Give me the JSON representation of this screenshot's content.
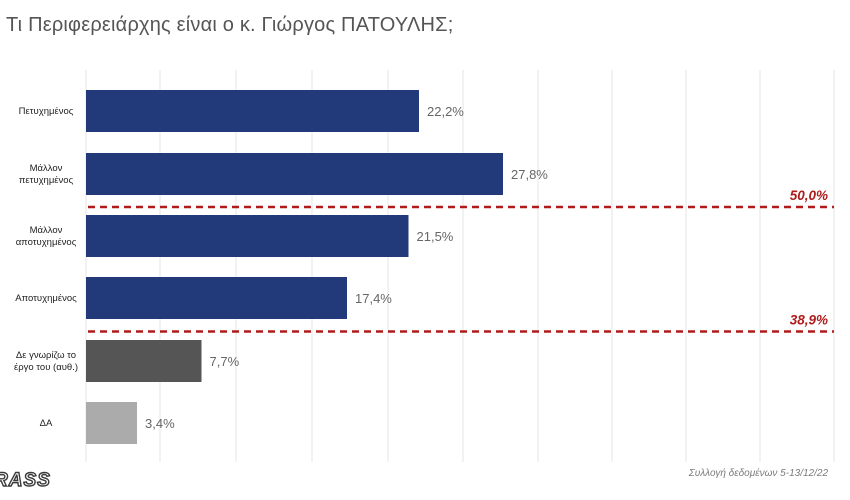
{
  "title": "Τι Περιφερειάρχης είναι ο κ. Γιώργος ΠΑΤΟΥΛΗΣ;",
  "footer_note": "Συλλογή δεδομένων 5-13/12/22",
  "logo_text": "RASS",
  "colors": {
    "primary_bar": "#223a7a",
    "neutral_bar": "#555555",
    "na_bar": "#ababab",
    "divider": "#b01c1c",
    "value_label": "#666666"
  },
  "chart_data": {
    "type": "bar",
    "orientation": "horizontal",
    "categories": [
      [
        "Πετυχημένος"
      ],
      [
        "Μάλλον",
        "πετυχημένος"
      ],
      [
        "Μάλλον",
        "αποτυχημένος"
      ],
      [
        "Αποτυχημένος"
      ],
      [
        "Δε γνωρίζω το",
        "έργο του (αυθ.)"
      ],
      [
        "ΔΑ"
      ]
    ],
    "values": [
      22.2,
      27.8,
      21.5,
      17.4,
      7.7,
      3.4
    ],
    "value_labels": [
      "22,2%",
      "27,8%",
      "21,5%",
      "17,4%",
      "7,7%",
      "3,4%"
    ],
    "bar_colors": [
      "primary",
      "primary",
      "primary",
      "primary",
      "neutral",
      "na"
    ],
    "xlim": [
      0,
      50
    ],
    "grid": true,
    "group_totals": [
      {
        "label": "50,0%",
        "after_category": 1
      },
      {
        "label": "38,9%",
        "after_category": 3
      }
    ]
  }
}
